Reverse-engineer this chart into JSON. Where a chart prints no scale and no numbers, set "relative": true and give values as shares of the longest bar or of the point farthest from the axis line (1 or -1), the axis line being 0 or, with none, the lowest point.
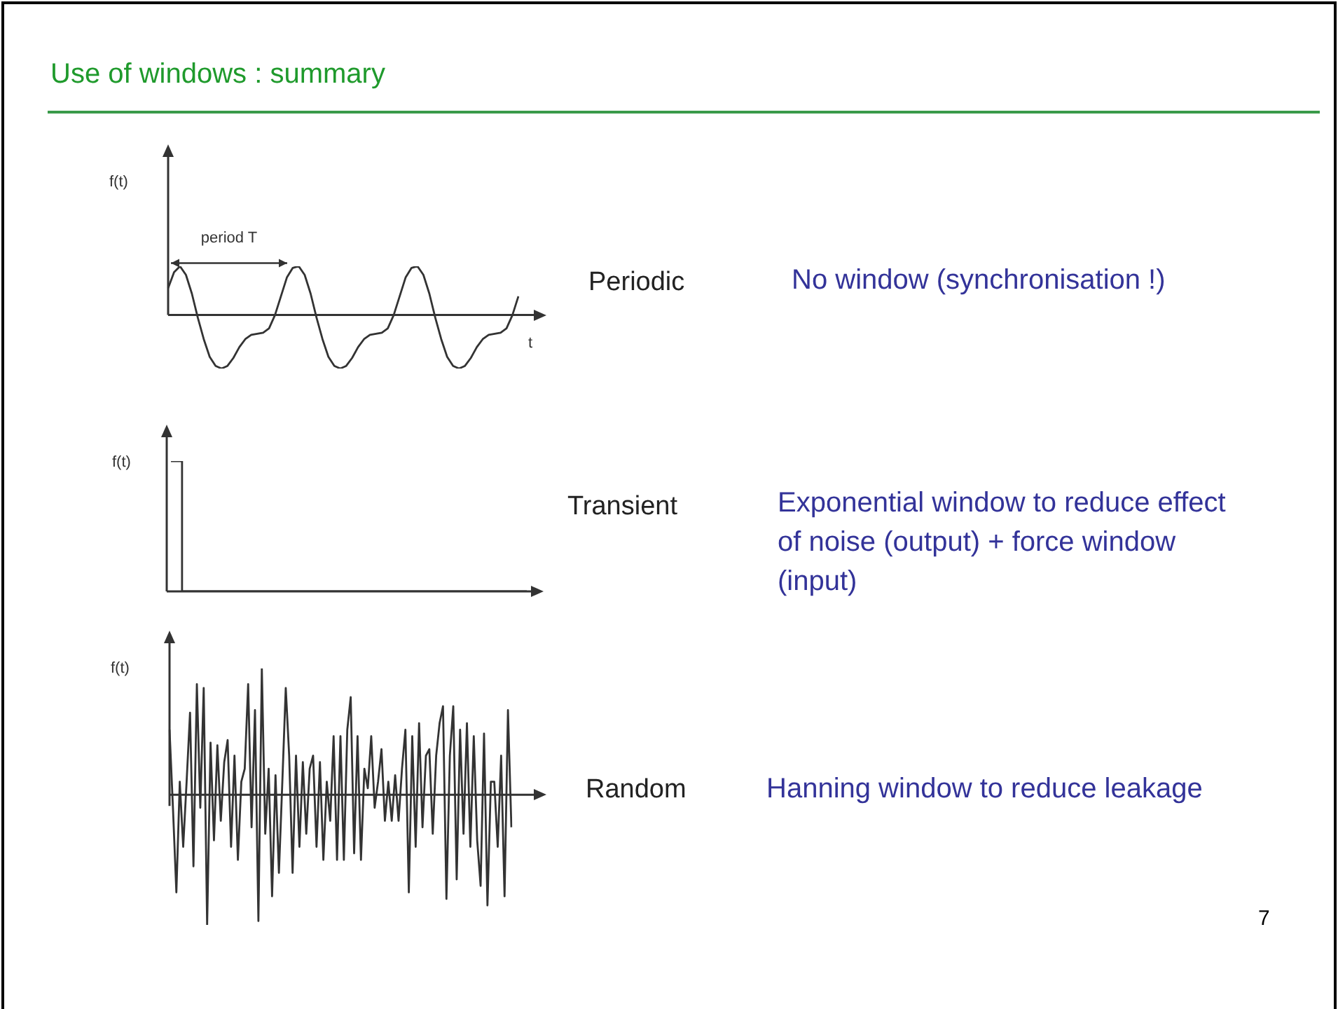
{
  "chart_data": [
    {
      "type": "line",
      "relative": true,
      "title": "Use of windows : summary",
      "ylabel": "f(t)",
      "xlabel": "t",
      "marker": "none",
      "color": "#333333",
      "annotations": [
        "period T",
        "Periodic",
        "No window (synchronisation !)"
      ],
      "categories": [
        null,
        null,
        null,
        null,
        null,
        null,
        null,
        null,
        null,
        null,
        null,
        null,
        null,
        null,
        null,
        null,
        null,
        null,
        null,
        null,
        null,
        null,
        null,
        null,
        null,
        null,
        null,
        null,
        null,
        null,
        null,
        null,
        null,
        null,
        null,
        null,
        null,
        null,
        null,
        null,
        null,
        null,
        null,
        null,
        null,
        null,
        null,
        null,
        null,
        null,
        null,
        null,
        null,
        null,
        null,
        null,
        null,
        null,
        null,
        null
      ],
      "values": [
        0.5,
        0.8,
        0.91,
        0.75,
        0.4,
        -0.05,
        -0.45,
        -0.78,
        -0.95,
        -1.0,
        -0.95,
        -0.8,
        -0.6,
        -0.45,
        -0.37,
        -0.35,
        -0.33,
        -0.25,
        0.0,
        0.35,
        0.7,
        0.88,
        0.91,
        0.75,
        0.4,
        -0.05,
        -0.45,
        -0.78,
        -0.95,
        -1.0,
        -0.95,
        -0.8,
        -0.6,
        -0.45,
        -0.37,
        -0.35,
        -0.33,
        -0.25,
        0.0,
        0.35,
        0.7,
        0.88,
        0.91,
        0.75,
        0.4,
        -0.05,
        -0.45,
        -0.78,
        -0.95,
        -1.0,
        -0.95,
        -0.8,
        -0.6,
        -0.45,
        -0.37,
        -0.35,
        -0.33,
        -0.25,
        0.0,
        0.35
      ]
    },
    {
      "type": "step",
      "relative": true,
      "ylabel": "f(t)",
      "marker": "none",
      "color": "#333333",
      "annotations": [
        "Transient",
        "Exponential window to reduce effect of noise (output) + force window (input)"
      ],
      "categories": [
        null,
        null,
        null,
        null,
        null,
        null,
        null,
        null,
        null,
        null,
        null,
        null,
        null,
        null,
        null,
        null,
        null,
        null,
        null,
        null,
        null,
        null,
        null,
        null,
        null,
        null,
        null,
        null,
        null,
        null,
        null,
        null,
        null
      ],
      "values": [
        1,
        0,
        0,
        0,
        0,
        0,
        0,
        0,
        0,
        0,
        0,
        0,
        0,
        0,
        0,
        0,
        0,
        0,
        0,
        0,
        0,
        0,
        0,
        0,
        0,
        0,
        0,
        0,
        0,
        0,
        0,
        0,
        0
      ]
    },
    {
      "type": "line",
      "relative": true,
      "ylabel": "f(t)",
      "marker": "none",
      "color": "#333333",
      "annotations": [
        "Random",
        "Hanning window to reduce leakage",
        "7"
      ],
      "categories": [
        null,
        null,
        null,
        null,
        null,
        null,
        null,
        null,
        null,
        null,
        null,
        null,
        null,
        null,
        null,
        null,
        null,
        null,
        null,
        null,
        null,
        null,
        null,
        null,
        null,
        null,
        null,
        null,
        null,
        null,
        null,
        null,
        null,
        null,
        null,
        null,
        null,
        null,
        null,
        null,
        null,
        null,
        null,
        null,
        null,
        null,
        null,
        null,
        null,
        null,
        null,
        null,
        null,
        null,
        null,
        null,
        null,
        null,
        null,
        null,
        null,
        null,
        null,
        null,
        null,
        null,
        null,
        null,
        null,
        null,
        null,
        null,
        null,
        null,
        null,
        null,
        null,
        null,
        null,
        null,
        null,
        null,
        null,
        null,
        null,
        null,
        null,
        null,
        null,
        null,
        null,
        null,
        null,
        null,
        null,
        null,
        null,
        null,
        null,
        null,
        null
      ],
      "values": [
        0.5,
        -0.1,
        -0.75,
        0.1,
        -0.4,
        0.1,
        0.63,
        -0.55,
        0.85,
        -0.1,
        0.82,
        -1.0,
        0.4,
        -0.35,
        0.38,
        -0.2,
        0.25,
        0.42,
        -0.4,
        0.3,
        -0.5,
        0.1,
        0.2,
        0.85,
        -0.25,
        0.65,
        -0.97,
        0.97,
        -0.3,
        0.2,
        -0.78,
        0.15,
        -0.6,
        0.1,
        0.82,
        0.3,
        -0.6,
        0.3,
        -0.4,
        0.25,
        -0.3,
        0.2,
        0.3,
        -0.4,
        0.25,
        -0.5,
        0.1,
        -0.2,
        0.45,
        -0.5,
        0.45,
        -0.5,
        0.5,
        0.75,
        -0.45,
        0.45,
        -0.5,
        0.2,
        0.05,
        0.45,
        -0.1,
        0.1,
        0.35,
        -0.2,
        0.1,
        -0.2,
        0.15,
        -0.2,
        0.2,
        0.5,
        -0.75,
        0.45,
        -0.4,
        0.55,
        -0.25,
        0.3,
        0.35,
        -0.3,
        0.3,
        0.55,
        0.68,
        -0.8,
        0.3,
        0.68,
        -0.65,
        0.5,
        -0.3,
        0.55,
        -0.4,
        0.45,
        -0.35,
        -0.7,
        0.47,
        -0.85,
        0.1,
        0.1,
        -0.4,
        0.3,
        -0.78,
        0.65,
        -0.25
      ]
    }
  ]
}
